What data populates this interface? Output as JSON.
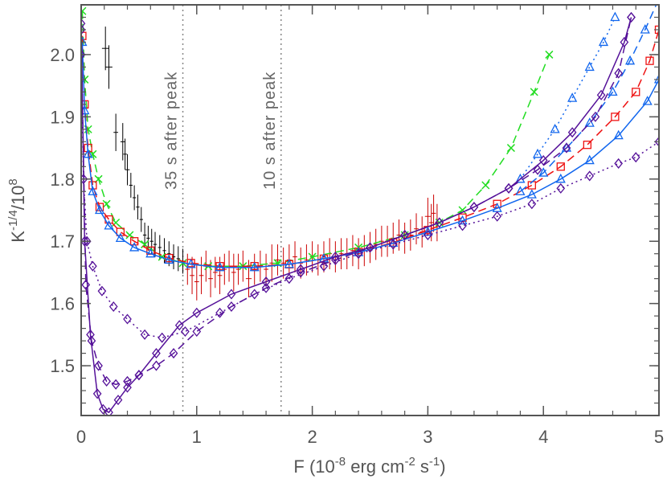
{
  "chart_data": {
    "type": "scatter",
    "title": "",
    "xlabel": "F (10",
    "xlabel_exp1": "-8",
    "xlabel_mid1": " erg cm",
    "xlabel_exp2": "-2",
    "xlabel_mid2": " s",
    "xlabel_exp3": "-1",
    "xlabel_end": ")",
    "ylabel": "K",
    "ylabel_exp": "-1/4",
    "ylabel_end": "/10",
    "ylabel_exp2": "8",
    "xlim": [
      0,
      5
    ],
    "ylim": [
      1.42,
      2.08
    ],
    "xticks": [
      0,
      1,
      2,
      3,
      4,
      5
    ],
    "xtick_labels": [
      "0",
      "1",
      "2",
      "3",
      "4",
      "5"
    ],
    "yticks": [
      1.5,
      1.6,
      1.7,
      1.8,
      1.9,
      2.0
    ],
    "ytick_labels": [
      "1.5",
      "1.6",
      "1.7",
      "1.8",
      "1.9",
      "2.0"
    ],
    "grid": false,
    "annotations": [
      {
        "text": "35 s after peak",
        "x": 0.88
      },
      {
        "text": "10 s after peak",
        "x": 1.73
      }
    ],
    "colors": {
      "axis": "#555555",
      "black_data": "#000000",
      "red_data": "#cc0000",
      "green": "#22dd22",
      "red": "#ee1111",
      "blue": "#1166ee",
      "purple": "#551199",
      "vline": "#888888"
    },
    "series": [
      {
        "color": "black_data",
        "style": "errorbar",
        "points": [
          [
            0.21,
            2.01,
            0.03,
            0.035
          ],
          [
            0.24,
            1.98,
            0.03,
            0.035
          ],
          [
            0.3,
            1.875,
            0.02,
            0.03
          ],
          [
            0.36,
            1.86,
            0.02,
            0.03
          ],
          [
            0.38,
            1.84,
            0.015,
            0.025
          ],
          [
            0.4,
            1.815,
            0.02,
            0.025
          ],
          [
            0.43,
            1.79,
            0.015,
            0.02
          ],
          [
            0.46,
            1.77,
            0.015,
            0.02
          ],
          [
            0.49,
            1.755,
            0.015,
            0.02
          ],
          [
            0.52,
            1.735,
            0.015,
            0.02
          ],
          [
            0.55,
            1.71,
            0.015,
            0.02
          ],
          [
            0.58,
            1.705,
            0.015,
            0.02
          ],
          [
            0.61,
            1.7,
            0.015,
            0.02
          ],
          [
            0.64,
            1.695,
            0.015,
            0.02
          ],
          [
            0.68,
            1.69,
            0.015,
            0.02
          ],
          [
            0.72,
            1.685,
            0.015,
            0.02
          ],
          [
            0.76,
            1.68,
            0.015,
            0.02
          ],
          [
            0.8,
            1.675,
            0.015,
            0.02
          ],
          [
            0.84,
            1.672,
            0.015,
            0.02
          ],
          [
            0.88,
            1.668,
            0.015,
            0.02
          ]
        ]
      },
      {
        "color": "red_data",
        "style": "errorbar",
        "points": [
          [
            0.92,
            1.655,
            0.02,
            0.025
          ],
          [
            0.96,
            1.645,
            0.02,
            0.03
          ],
          [
            1.0,
            1.635,
            0.02,
            0.03
          ],
          [
            1.04,
            1.645,
            0.02,
            0.03
          ],
          [
            1.08,
            1.66,
            0.02,
            0.025
          ],
          [
            1.12,
            1.64,
            0.02,
            0.03
          ],
          [
            1.16,
            1.65,
            0.02,
            0.025
          ],
          [
            1.2,
            1.645,
            0.02,
            0.03
          ],
          [
            1.24,
            1.655,
            0.02,
            0.025
          ],
          [
            1.28,
            1.66,
            0.02,
            0.025
          ],
          [
            1.32,
            1.65,
            0.02,
            0.03
          ],
          [
            1.36,
            1.655,
            0.02,
            0.025
          ],
          [
            1.4,
            1.66,
            0.02,
            0.025
          ],
          [
            1.45,
            1.64,
            0.025,
            0.03
          ],
          [
            1.5,
            1.655,
            0.02,
            0.025
          ],
          [
            1.55,
            1.66,
            0.02,
            0.025
          ],
          [
            1.6,
            1.655,
            0.02,
            0.025
          ],
          [
            1.65,
            1.665,
            0.02,
            0.03
          ],
          [
            1.7,
            1.67,
            0.02,
            0.025
          ],
          [
            1.75,
            1.665,
            0.02,
            0.025
          ],
          [
            1.8,
            1.67,
            0.02,
            0.025
          ],
          [
            1.85,
            1.675,
            0.02,
            0.025
          ],
          [
            1.9,
            1.665,
            0.02,
            0.025
          ],
          [
            1.95,
            1.67,
            0.02,
            0.025
          ],
          [
            2.0,
            1.675,
            0.02,
            0.025
          ],
          [
            2.05,
            1.67,
            0.02,
            0.025
          ],
          [
            2.1,
            1.675,
            0.02,
            0.025
          ],
          [
            2.15,
            1.68,
            0.02,
            0.025
          ],
          [
            2.2,
            1.675,
            0.02,
            0.025
          ],
          [
            2.25,
            1.68,
            0.02,
            0.025
          ],
          [
            2.3,
            1.68,
            0.02,
            0.025
          ],
          [
            2.35,
            1.685,
            0.02,
            0.025
          ],
          [
            2.4,
            1.68,
            0.02,
            0.025
          ],
          [
            2.45,
            1.685,
            0.02,
            0.025
          ],
          [
            2.5,
            1.69,
            0.02,
            0.025
          ],
          [
            2.55,
            1.695,
            0.02,
            0.025
          ],
          [
            2.6,
            1.7,
            0.02,
            0.025
          ],
          [
            2.65,
            1.7,
            0.02,
            0.025
          ],
          [
            2.7,
            1.705,
            0.02,
            0.025
          ],
          [
            2.75,
            1.71,
            0.02,
            0.025
          ],
          [
            2.8,
            1.705,
            0.02,
            0.025
          ],
          [
            2.85,
            1.71,
            0.02,
            0.025
          ],
          [
            2.9,
            1.72,
            0.02,
            0.025
          ],
          [
            2.95,
            1.715,
            0.02,
            0.025
          ],
          [
            3.0,
            1.74,
            0.025,
            0.03
          ],
          [
            3.03,
            1.73,
            0.02,
            0.03
          ],
          [
            3.05,
            1.745,
            0.02,
            0.03
          ],
          [
            3.08,
            1.73,
            0.02,
            0.03
          ]
        ]
      },
      {
        "color": "green",
        "style": "dashed",
        "marker": "x",
        "x": [
          0.01,
          0.03,
          0.06,
          0.1,
          0.15,
          0.22,
          0.3,
          0.42,
          0.55,
          0.7,
          0.88,
          1.1,
          1.4,
          1.7,
          2.0,
          2.4,
          2.8,
          3.1,
          3.3,
          3.5,
          3.72,
          3.92,
          4.05
        ],
        "y": [
          2.07,
          1.96,
          1.88,
          1.84,
          1.8,
          1.76,
          1.73,
          1.71,
          1.695,
          1.675,
          1.665,
          1.66,
          1.66,
          1.665,
          1.675,
          1.69,
          1.71,
          1.73,
          1.75,
          1.79,
          1.85,
          1.94,
          2.0
        ]
      },
      {
        "color": "red",
        "style": "dashed",
        "marker": "square",
        "x": [
          0.01,
          0.03,
          0.06,
          0.1,
          0.16,
          0.24,
          0.34,
          0.46,
          0.6,
          0.76,
          0.95,
          1.2,
          1.5,
          1.8,
          2.1,
          2.4,
          2.7,
          3.0,
          3.3,
          3.6,
          3.9,
          4.15,
          4.38,
          4.62,
          4.8,
          4.92,
          5.0
        ],
        "y": [
          2.03,
          1.92,
          1.85,
          1.79,
          1.755,
          1.735,
          1.715,
          1.7,
          1.685,
          1.673,
          1.665,
          1.66,
          1.66,
          1.663,
          1.672,
          1.683,
          1.698,
          1.718,
          1.738,
          1.76,
          1.79,
          1.82,
          1.855,
          1.9,
          1.94,
          1.99,
          2.04
        ]
      },
      {
        "color": "blue",
        "style": "solid",
        "marker": "triangle",
        "x": [
          0.01,
          0.03,
          0.06,
          0.1,
          0.16,
          0.24,
          0.34,
          0.46,
          0.6,
          0.76,
          0.95,
          1.2,
          1.5,
          1.8,
          2.1,
          2.4,
          2.7,
          3.0,
          3.3,
          3.6,
          3.9,
          4.15,
          4.4,
          4.65,
          4.9,
          5.0
        ],
        "y": [
          2.02,
          1.91,
          1.84,
          1.78,
          1.75,
          1.725,
          1.705,
          1.69,
          1.68,
          1.67,
          1.663,
          1.658,
          1.658,
          1.663,
          1.672,
          1.682,
          1.697,
          1.715,
          1.733,
          1.753,
          1.775,
          1.8,
          1.83,
          1.87,
          1.925,
          1.96
        ]
      },
      {
        "color": "blue",
        "style": "dashed",
        "marker": "triangle",
        "x": [
          3.8,
          4.0,
          4.2,
          4.4,
          4.6,
          4.75,
          4.88,
          5.0
        ],
        "y": [
          1.78,
          1.81,
          1.85,
          1.89,
          1.94,
          1.99,
          2.04,
          2.09
        ]
      },
      {
        "color": "blue",
        "style": "dotted",
        "marker": "triangle",
        "x": [
          3.8,
          3.95,
          4.1,
          4.25,
          4.4,
          4.52,
          4.62
        ],
        "y": [
          1.8,
          1.84,
          1.88,
          1.93,
          1.98,
          2.02,
          2.06
        ]
      },
      {
        "color": "purple",
        "style": "solid",
        "marker": "diamond",
        "x": [
          0.0,
          0.03,
          0.08,
          0.14,
          0.19,
          0.24,
          0.32,
          0.4,
          0.5,
          0.65,
          0.85,
          1.0,
          1.3,
          1.6,
          1.9,
          2.2,
          2.5,
          2.8,
          3.1,
          3.4,
          3.7,
          4.0,
          4.25,
          4.5,
          4.7,
          4.76
        ],
        "y": [
          2.05,
          1.7,
          1.55,
          1.455,
          1.43,
          1.425,
          1.445,
          1.465,
          1.485,
          1.52,
          1.565,
          1.585,
          1.615,
          1.635,
          1.655,
          1.675,
          1.69,
          1.71,
          1.73,
          1.755,
          1.785,
          1.83,
          1.875,
          1.935,
          2.02,
          2.06
        ]
      },
      {
        "color": "purple",
        "style": "dashed",
        "marker": "diamond",
        "x": [
          0.0,
          0.04,
          0.09,
          0.15,
          0.22,
          0.3,
          0.4,
          0.5,
          0.65,
          0.8,
          1.0,
          1.3,
          1.6,
          1.9,
          2.2,
          2.5,
          2.8,
          3.1,
          3.4,
          3.7,
          3.95,
          4.2,
          4.45,
          4.65,
          4.76
        ],
        "y": [
          2.04,
          1.63,
          1.54,
          1.5,
          1.475,
          1.47,
          1.475,
          1.485,
          1.5,
          1.52,
          1.555,
          1.595,
          1.625,
          1.65,
          1.67,
          1.69,
          1.71,
          1.73,
          1.755,
          1.785,
          1.815,
          1.85,
          1.9,
          1.97,
          2.06
        ]
      },
      {
        "color": "purple",
        "style": "dotted",
        "marker": "diamond",
        "x": [
          0.0,
          0.02,
          0.05,
          0.1,
          0.18,
          0.28,
          0.4,
          0.55,
          0.7,
          0.9,
          1.2,
          1.5,
          1.8,
          2.1,
          2.4,
          2.7,
          3.0,
          3.3,
          3.6,
          3.9,
          4.15,
          4.4,
          4.65,
          4.8,
          5.0
        ],
        "y": [
          2.0,
          1.8,
          1.7,
          1.66,
          1.62,
          1.595,
          1.575,
          1.55,
          1.545,
          1.555,
          1.585,
          1.615,
          1.64,
          1.66,
          1.68,
          1.695,
          1.71,
          1.725,
          1.74,
          1.76,
          1.785,
          1.805,
          1.825,
          1.835,
          1.86
        ]
      }
    ]
  }
}
